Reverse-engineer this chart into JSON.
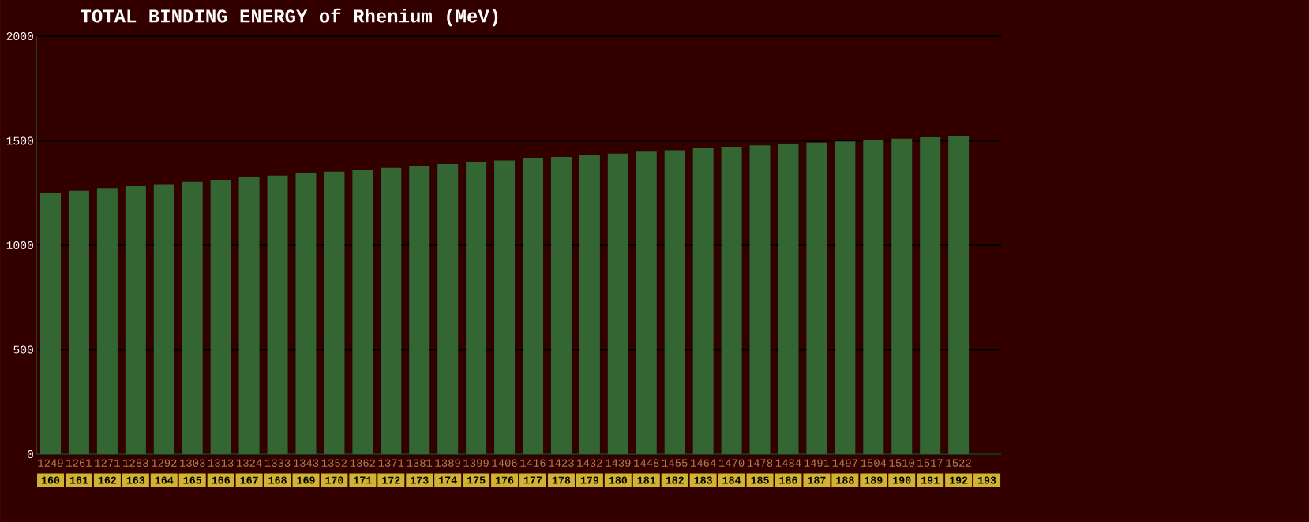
{
  "chart_data": {
    "type": "bar",
    "title": "TOTAL BINDING ENERGY of Rhenium (MeV)",
    "categories": [
      "160",
      "161",
      "162",
      "163",
      "164",
      "165",
      "166",
      "167",
      "168",
      "169",
      "170",
      "171",
      "172",
      "173",
      "174",
      "175",
      "176",
      "177",
      "178",
      "179",
      "180",
      "181",
      "182",
      "183",
      "184",
      "185",
      "186",
      "187",
      "188",
      "189",
      "190",
      "191",
      "192",
      "193"
    ],
    "values": [
      1249,
      1261,
      1271,
      1283,
      1292,
      1303,
      1313,
      1324,
      1333,
      1343,
      1352,
      1362,
      1371,
      1381,
      1389,
      1399,
      1406,
      1416,
      1423,
      1432,
      1439,
      1448,
      1455,
      1464,
      1470,
      1478,
      1484,
      1491,
      1497,
      1504,
      1510,
      1517,
      1522,
      null
    ],
    "color": "#336633",
    "ylim": [
      0,
      2000
    ],
    "yticks": [
      0,
      500,
      1000,
      1500,
      2000
    ],
    "grid": "y",
    "data_labels": true
  }
}
